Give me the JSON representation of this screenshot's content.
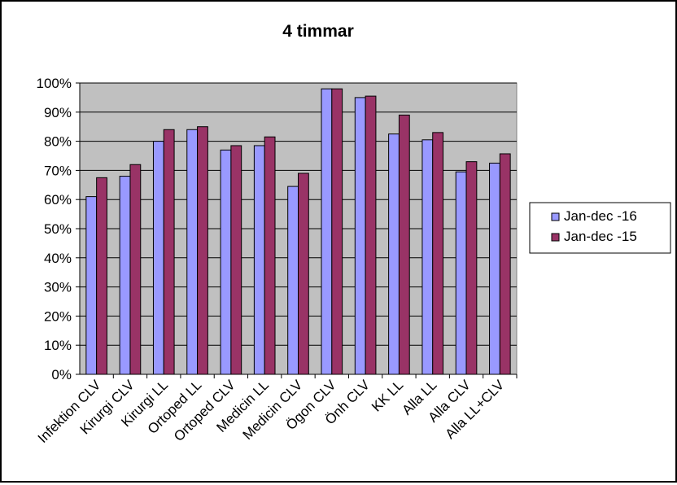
{
  "chart_data": {
    "type": "bar",
    "title": "4 timmar",
    "xlabel": "",
    "ylabel": "",
    "ylim": [
      0,
      1.0
    ],
    "yticks": [
      "0%",
      "10%",
      "20%",
      "30%",
      "40%",
      "50%",
      "60%",
      "70%",
      "80%",
      "90%",
      "100%"
    ],
    "grid": true,
    "legend_position": "right",
    "categories": [
      "Infektion CLV",
      "Kirurgi CLV",
      "Kirurgi LL",
      "Ortoped LL",
      "Ortoped CLV",
      "Medicin LL",
      "Medicin CLV",
      "Ögon CLV",
      "Önh CLV",
      "KK LL",
      "Alla LL",
      "Alla CLV",
      "Alla LL+CLV"
    ],
    "series": [
      {
        "name": "Jan-dec -16",
        "color": "#9999FF",
        "values": [
          0.61,
          0.68,
          0.8,
          0.84,
          0.77,
          0.785,
          0.645,
          0.98,
          0.95,
          0.825,
          0.805,
          0.695,
          0.725
        ]
      },
      {
        "name": "Jan-dec -15",
        "color": "#993366",
        "values": [
          0.675,
          0.72,
          0.84,
          0.85,
          0.785,
          0.815,
          0.69,
          0.98,
          0.955,
          0.89,
          0.83,
          0.73,
          0.757
        ]
      }
    ],
    "plot_background": "#C0C0C0"
  }
}
